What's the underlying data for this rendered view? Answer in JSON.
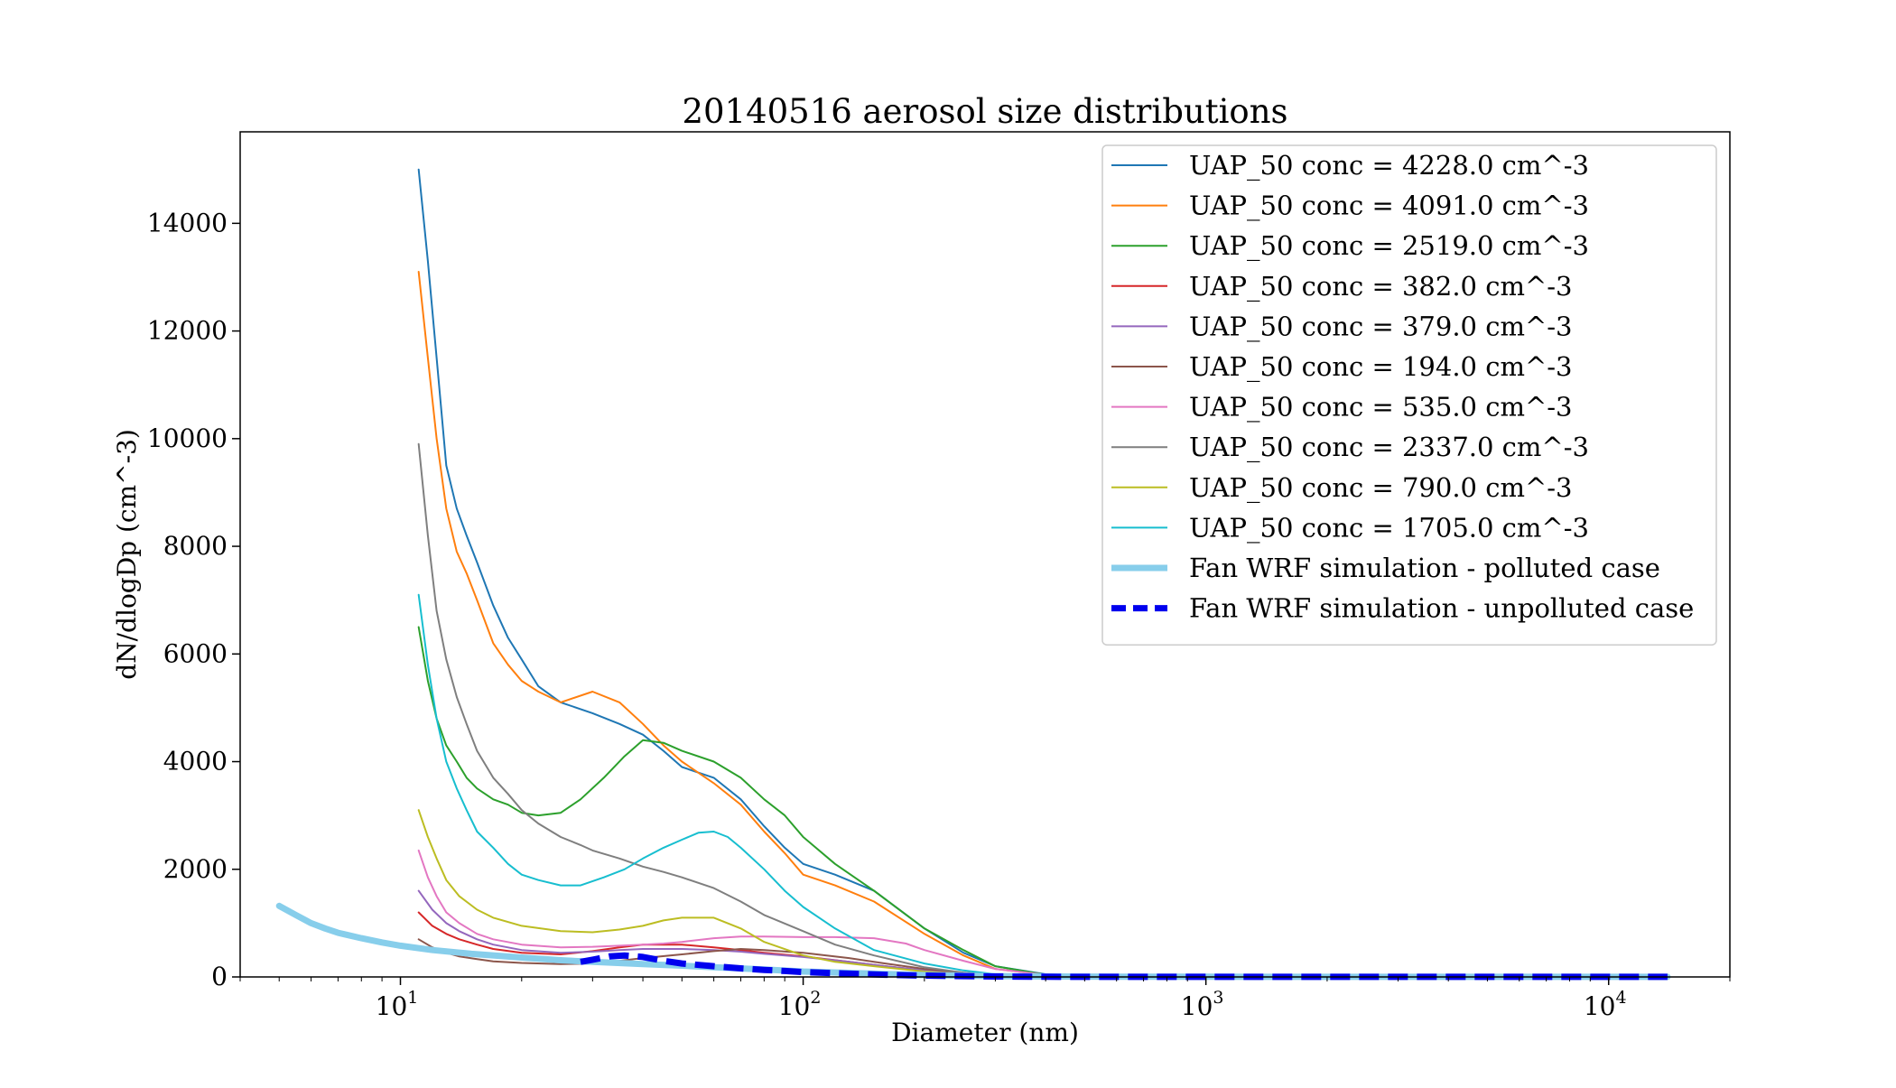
{
  "chart_data": {
    "type": "line",
    "title": "20140516 aerosol size distributions",
    "xlabel": "Diameter (nm)",
    "ylabel": "dN/dlogDp (cm^-3)",
    "xscale": "log",
    "xlim": [
      4,
      20000
    ],
    "ylim": [
      0,
      15700
    ],
    "x_ticks": [
      {
        "base": "10",
        "exp": "1",
        "value": 10
      },
      {
        "base": "10",
        "exp": "2",
        "value": 100
      },
      {
        "base": "10",
        "exp": "3",
        "value": 1000
      },
      {
        "base": "10",
        "exp": "4",
        "value": 10000
      }
    ],
    "y_ticks": [
      {
        "label": "0",
        "value": 0
      },
      {
        "label": "2000",
        "value": 2000
      },
      {
        "label": "4000",
        "value": 4000
      },
      {
        "label": "6000",
        "value": 6000
      },
      {
        "label": "8000",
        "value": 8000
      },
      {
        "label": "10000",
        "value": 10000
      },
      {
        "label": "12000",
        "value": 12000
      },
      {
        "label": "14000",
        "value": 14000
      }
    ],
    "grid": false,
    "legend_position": "top-right",
    "series": [
      {
        "name": "UAP_50 conc = 4228.0 cm^-3",
        "color": "#1f77b4",
        "style": "solid",
        "width": 2,
        "x": [
          11.1,
          11.7,
          12.3,
          13,
          13.8,
          14.6,
          15.5,
          17,
          18.5,
          20,
          22,
          25,
          30,
          35,
          40,
          45,
          50,
          60,
          70,
          80,
          90,
          100,
          120,
          150,
          200,
          250,
          300,
          400,
          500
        ],
        "y": [
          15000,
          13300,
          11500,
          9500,
          8700,
          8200,
          7700,
          6900,
          6300,
          5900,
          5400,
          5100,
          4900,
          4700,
          4500,
          4200,
          3900,
          3700,
          3300,
          2800,
          2400,
          2100,
          1900,
          1600,
          900,
          450,
          200,
          50,
          20
        ]
      },
      {
        "name": "UAP_50 conc = 4091.0 cm^-3",
        "color": "#ff7f0e",
        "style": "solid",
        "width": 2,
        "x": [
          11.1,
          11.7,
          12.3,
          13,
          13.8,
          14.6,
          15.5,
          17,
          18.5,
          20,
          22,
          25,
          30,
          35,
          40,
          45,
          50,
          60,
          70,
          80,
          90,
          100,
          120,
          150,
          200,
          250,
          300,
          400,
          500
        ],
        "y": [
          13100,
          11500,
          10000,
          8700,
          7900,
          7500,
          7000,
          6200,
          5800,
          5500,
          5300,
          5100,
          5300,
          5100,
          4700,
          4300,
          4000,
          3600,
          3200,
          2700,
          2300,
          1900,
          1700,
          1400,
          800,
          400,
          150,
          40,
          20
        ]
      },
      {
        "name": "UAP_50 conc = 2519.0 cm^-3",
        "color": "#2ca02c",
        "style": "solid",
        "width": 2,
        "x": [
          11.1,
          11.7,
          12.3,
          13,
          13.8,
          14.6,
          15.5,
          17,
          18.5,
          20,
          22,
          25,
          28,
          32,
          36,
          40,
          45,
          50,
          60,
          70,
          80,
          90,
          100,
          120,
          150,
          200,
          250,
          300,
          400,
          500
        ],
        "y": [
          6500,
          5500,
          4800,
          4300,
          4000,
          3700,
          3500,
          3300,
          3200,
          3050,
          3000,
          3050,
          3300,
          3700,
          4100,
          4400,
          4350,
          4200,
          4000,
          3700,
          3300,
          3000,
          2600,
          2100,
          1600,
          900,
          500,
          200,
          40,
          20
        ]
      },
      {
        "name": "UAP_50 conc = 382.0 cm^-3",
        "color": "#d62728",
        "style": "solid",
        "width": 2,
        "x": [
          11.1,
          12,
          13,
          14,
          15.5,
          17,
          20,
          25,
          30,
          35,
          40,
          50,
          60,
          70,
          80,
          100,
          130,
          160,
          200,
          250,
          300,
          400,
          500
        ],
        "y": [
          1200,
          950,
          800,
          700,
          600,
          520,
          450,
          420,
          480,
          550,
          600,
          600,
          550,
          500,
          450,
          380,
          280,
          200,
          120,
          70,
          40,
          20,
          10
        ]
      },
      {
        "name": "UAP_50 conc = 379.0 cm^-3",
        "color": "#9467bd",
        "style": "solid",
        "width": 2,
        "x": [
          11.1,
          12,
          13,
          14,
          15.5,
          17,
          20,
          25,
          30,
          35,
          40,
          50,
          60,
          70,
          80,
          100,
          130,
          160,
          200,
          250,
          300,
          400,
          500
        ],
        "y": [
          1600,
          1250,
          1000,
          850,
          700,
          600,
          500,
          450,
          470,
          500,
          520,
          520,
          500,
          470,
          430,
          370,
          280,
          200,
          120,
          70,
          40,
          20,
          10
        ]
      },
      {
        "name": "UAP_50 conc = 194.0 cm^-3",
        "color": "#8c564b",
        "style": "solid",
        "width": 2,
        "x": [
          11.1,
          12,
          13,
          14,
          15.5,
          17,
          20,
          25,
          30,
          35,
          40,
          50,
          60,
          70,
          80,
          100,
          130,
          160,
          200,
          250,
          300,
          400,
          500
        ],
        "y": [
          700,
          550,
          450,
          380,
          330,
          290,
          260,
          240,
          250,
          300,
          350,
          420,
          480,
          520,
          500,
          450,
          350,
          250,
          150,
          80,
          40,
          15,
          5
        ]
      },
      {
        "name": "UAP_50 conc = 535.0 cm^-3",
        "color": "#e377c2",
        "style": "solid",
        "width": 2,
        "x": [
          11.1,
          11.7,
          12.3,
          13,
          14,
          15.5,
          17,
          20,
          25,
          30,
          35,
          40,
          45,
          50,
          60,
          70,
          80,
          100,
          120,
          150,
          180,
          200,
          250,
          300,
          400,
          500
        ],
        "y": [
          2350,
          1850,
          1500,
          1200,
          1000,
          800,
          700,
          600,
          550,
          560,
          580,
          600,
          620,
          650,
          720,
          750,
          750,
          740,
          740,
          720,
          620,
          500,
          300,
          150,
          40,
          20
        ]
      },
      {
        "name": "UAP_50 conc = 2337.0 cm^-3",
        "color": "#7f7f7f",
        "style": "solid",
        "width": 2,
        "x": [
          11.1,
          11.7,
          12.3,
          13,
          13.8,
          14.6,
          15.5,
          17,
          18.5,
          20,
          22,
          25,
          28,
          30,
          35,
          40,
          45,
          50,
          60,
          70,
          80,
          100,
          120,
          150,
          200,
          250,
          300,
          400,
          500
        ],
        "y": [
          9900,
          8200,
          6800,
          5900,
          5200,
          4700,
          4200,
          3700,
          3400,
          3100,
          2850,
          2600,
          2450,
          2350,
          2200,
          2050,
          1950,
          1850,
          1650,
          1400,
          1150,
          850,
          600,
          400,
          180,
          80,
          40,
          15,
          5
        ]
      },
      {
        "name": "UAP_50 conc = 790.0 cm^-3",
        "color": "#bcbd22",
        "style": "solid",
        "width": 2,
        "x": [
          11.1,
          11.7,
          12.3,
          13,
          14,
          15.5,
          17,
          20,
          25,
          30,
          35,
          40,
          45,
          50,
          60,
          70,
          80,
          100,
          120,
          150,
          200,
          250,
          300,
          400,
          500
        ],
        "y": [
          3100,
          2600,
          2200,
          1800,
          1500,
          1250,
          1100,
          950,
          850,
          830,
          880,
          950,
          1050,
          1100,
          1100,
          900,
          650,
          400,
          280,
          200,
          100,
          50,
          25,
          10,
          5
        ]
      },
      {
        "name": "UAP_50 conc = 1705.0 cm^-3",
        "color": "#17becf",
        "style": "solid",
        "width": 2,
        "x": [
          11.1,
          11.7,
          12.3,
          13,
          13.8,
          14.6,
          15.5,
          17,
          18.5,
          20,
          22,
          25,
          28,
          32,
          36,
          40,
          45,
          50,
          55,
          60,
          65,
          70,
          80,
          90,
          100,
          120,
          150,
          200,
          250,
          300,
          400,
          500
        ],
        "y": [
          7100,
          5800,
          4800,
          4000,
          3500,
          3100,
          2700,
          2400,
          2100,
          1900,
          1800,
          1700,
          1700,
          1850,
          2000,
          2200,
          2400,
          2550,
          2680,
          2700,
          2600,
          2400,
          2000,
          1600,
          1300,
          900,
          500,
          250,
          120,
          50,
          15,
          5
        ]
      },
      {
        "name": "Fan WRF simulation - polluted case",
        "color": "#87ceeb",
        "style": "solid",
        "width": 7,
        "x": [
          5,
          5.5,
          6,
          6.5,
          7,
          8,
          9,
          10,
          12,
          15,
          20,
          25,
          30,
          40,
          50,
          60,
          80,
          100,
          150,
          200,
          300,
          400,
          600,
          1000,
          2000,
          5000,
          10000,
          14000
        ],
        "y": [
          1320,
          1150,
          1000,
          900,
          820,
          720,
          640,
          580,
          500,
          430,
          360,
          310,
          280,
          240,
          210,
          180,
          140,
          100,
          60,
          35,
          15,
          8,
          5,
          3,
          2,
          2,
          2,
          2
        ]
      },
      {
        "name": "Fan WRF simulation - unpolluted case",
        "color": "#0000ee",
        "style": "dashed",
        "width": 7,
        "x": [
          28,
          30,
          33,
          36,
          40,
          45,
          50,
          60,
          70,
          80,
          90,
          100,
          130,
          160,
          200,
          250,
          300,
          400,
          600,
          1000,
          2000,
          5000,
          10000,
          14000
        ],
        "y": [
          280,
          320,
          380,
          400,
          370,
          300,
          250,
          200,
          160,
          130,
          110,
          90,
          60,
          40,
          25,
          15,
          8,
          4,
          2,
          1,
          1,
          1,
          1,
          1
        ]
      }
    ]
  }
}
